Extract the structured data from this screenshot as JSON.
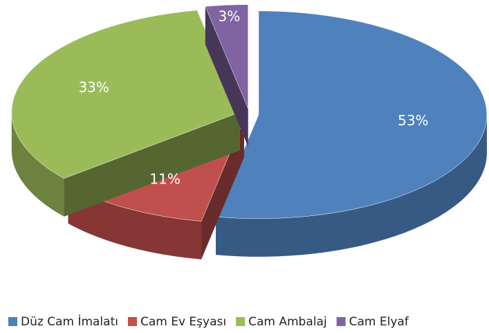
{
  "chart_data": {
    "type": "pie",
    "categories": [
      "Düz Cam İmalatı",
      "Cam Ev Eşyası",
      "Cam Ambalaj",
      "Cam Elyaf"
    ],
    "values": [
      53,
      11,
      33,
      3
    ],
    "value_labels": [
      "53%",
      "11%",
      "33%",
      "3%"
    ],
    "colors": [
      "#4f81bd",
      "#c0504d",
      "#9bbb59",
      "#8064a2"
    ],
    "legend": "bottom"
  }
}
